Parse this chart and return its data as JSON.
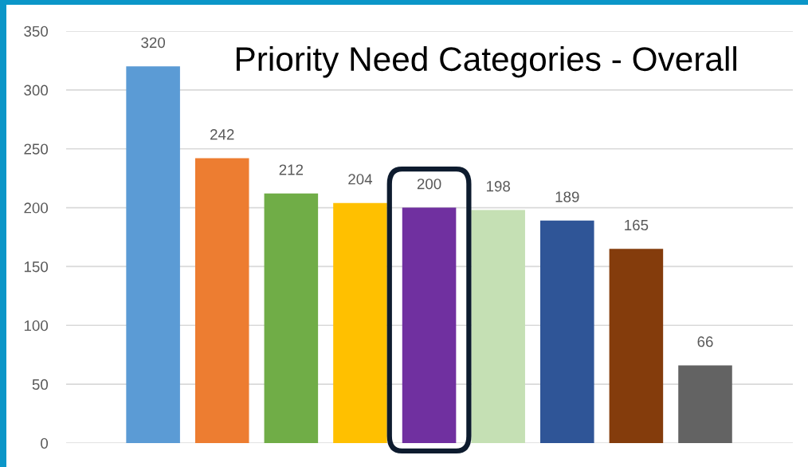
{
  "chart_data": {
    "type": "bar",
    "title": "Priority Need Categories - Overall",
    "categories": [
      null,
      null,
      null,
      null,
      null,
      null,
      null,
      null,
      null
    ],
    "values": [
      320,
      242,
      212,
      204,
      200,
      198,
      189,
      165,
      66
    ],
    "colors": [
      "#5b9bd5",
      "#ed7d31",
      "#70ad47",
      "#ffc000",
      "#7030a0",
      "#c5e0b4",
      "#2f5597",
      "#843c0c",
      "#636363"
    ],
    "ylim": [
      0,
      350
    ],
    "yticks": [
      0,
      50,
      100,
      150,
      200,
      250,
      300,
      350
    ],
    "grid": "y",
    "tick_labels": "y",
    "data_labels": true,
    "legend": false
  }
}
